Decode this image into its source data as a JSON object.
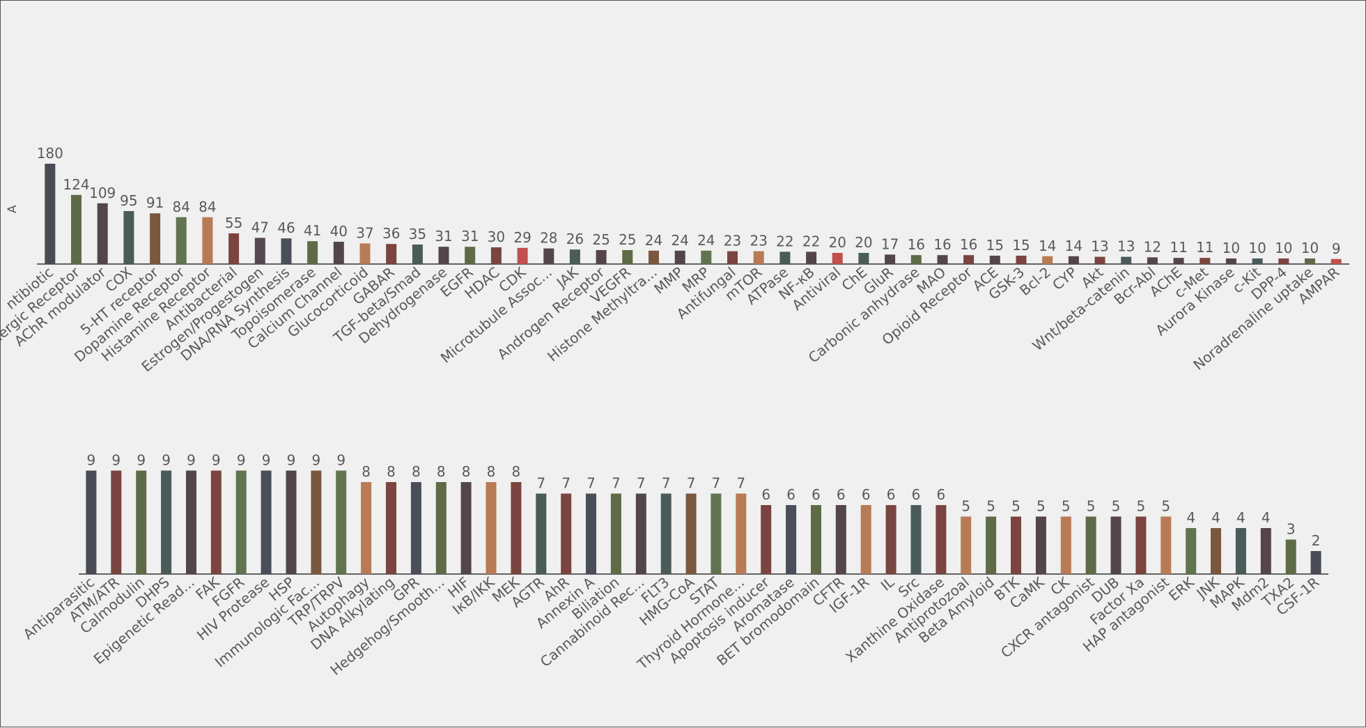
{
  "chart_data": [
    {
      "type": "bar",
      "ylabel": "A",
      "categories": [
        "ntibiotic",
        "Adrenergic Receptor",
        "AChR modulator",
        "COX",
        "5-HT receptor",
        "Dopamine Receptor",
        "Histamine Receptor",
        "Antibacterial",
        "Estrogen/Progestogen",
        "DNA/RNA Synthesis",
        "Topoisomerase",
        "Calcium Channel",
        "Glucocorticoid",
        "GABAR",
        "TGF-beta/Smad",
        "Dehydrogenase",
        "EGFR",
        "HDAC",
        "CDK",
        "Microtubule Assoc...",
        "JAK",
        "Androgen Receptor",
        "VEGFR",
        "Histone Methyltra...",
        "MMP",
        "MRP",
        "Antifungal",
        "mTOR",
        "ATPase",
        "NF-κB",
        "Antiviral",
        "ChE",
        "GluR",
        "Carbonic anhydrase",
        "MAO",
        "Opioid Receptor",
        "ACE",
        "GSK-3",
        "Bcl-2",
        "CYP",
        "Akt",
        "Wnt/beta-catenin",
        "Bcr-Abl",
        "AChE",
        "c-Met",
        "Aurora Kinase",
        "c-Kit",
        "DPP-4",
        "Noradrenaline uptake",
        "AMPAR"
      ],
      "values": [
        180,
        124,
        109,
        95,
        91,
        84,
        84,
        55,
        47,
        46,
        41,
        40,
        37,
        36,
        35,
        31,
        31,
        30,
        29,
        28,
        26,
        25,
        25,
        24,
        24,
        24,
        23,
        23,
        22,
        22,
        20,
        20,
        17,
        16,
        16,
        16,
        15,
        15,
        14,
        14,
        13,
        13,
        12,
        11,
        11,
        10,
        10,
        10,
        10,
        9
      ],
      "colors": [
        "#4a4c55",
        "#5f6b46",
        "#54454c",
        "#4a5b5a",
        "#7a5840",
        "#60744f",
        "#b87b55",
        "#7a4440",
        "#564850",
        "#4a4e5a",
        "#5f6b46",
        "#54454c",
        "#b87b55",
        "#7a4440",
        "#4a5b5a",
        "#54454c",
        "#5f6b46",
        "#7a4440",
        "#c0504d",
        "#54454c",
        "#4a5b5a",
        "#54454c",
        "#5f6b46",
        "#7a5840",
        "#54454c",
        "#60744f",
        "#7a4440",
        "#b87b55",
        "#4a5b5a",
        "#54454c",
        "#c0504d",
        "#4a5b5a",
        "#54454c",
        "#5f6b46",
        "#54454c",
        "#7a4440",
        "#54454c",
        "#7a4440",
        "#b87b55",
        "#54454c",
        "#7a4440",
        "#4a5b5a",
        "#54454c",
        "#54454c",
        "#7a4440",
        "#54454c",
        "#4a5b5a",
        "#7a4440",
        "#5f6b46",
        "#c0504d"
      ],
      "ylim": [
        0,
        190
      ]
    },
    {
      "type": "bar",
      "categories": [
        "Antiparasitic",
        "ATM/ATR",
        "Calmodulin",
        "DHPS",
        "Epigenetic Read...",
        "FAK",
        "FGFR",
        "HIV Protease",
        "HSP",
        "Immunologic Fac...",
        "TRP/TRPV",
        "Autophagy",
        "DNA Alkylating",
        "GPR",
        "Hedgehog/Smooth...",
        "HIF",
        "IκB/IKK",
        "MEK",
        "AGTR",
        "AhR",
        "Annexin A",
        "Biliation",
        "Cannabinoid Rec...",
        "FLT3",
        "HMG-CoA",
        "STAT",
        "Thyroid Hormone...",
        "Apoptosis inducer",
        "Aromatase",
        "BET bromodomain",
        "CFTR",
        "IGF-1R",
        "IL",
        "Src",
        "Xanthine Oxidase",
        "Antiprotozoal",
        "Beta Amyloid",
        "BTK",
        "CaMK",
        "CK",
        "CXCR antagonist",
        "DUB",
        "Factor Xa",
        "HAP antagonist",
        "ERK",
        "JNK",
        "MAPK",
        "Mdm2",
        "TXA2",
        "CSF-1R"
      ],
      "values": [
        9,
        9,
        9,
        9,
        9,
        9,
        9,
        9,
        9,
        9,
        9,
        8,
        8,
        8,
        8,
        8,
        8,
        8,
        7,
        7,
        7,
        7,
        7,
        7,
        7,
        7,
        7,
        6,
        6,
        6,
        6,
        6,
        6,
        6,
        6,
        5,
        5,
        5,
        5,
        5,
        5,
        5,
        5,
        5,
        4,
        4,
        4,
        4,
        3,
        2
      ],
      "colors": [
        "#4a4c55",
        "#7a4440",
        "#5f6b46",
        "#4a5b5a",
        "#54454c",
        "#7a4440",
        "#60744f",
        "#4a4e5a",
        "#54454c",
        "#7a5840",
        "#60744f",
        "#b87b55",
        "#7a4440",
        "#4a4e5a",
        "#5f6b46",
        "#54454c",
        "#b87b55",
        "#7a4440",
        "#4a5b5a",
        "#7a4440",
        "#4a4e5a",
        "#5f6b46",
        "#54454c",
        "#4a5b5a",
        "#7a5840",
        "#60744f",
        "#b87b55",
        "#7a4440",
        "#4a4e5a",
        "#5f6b46",
        "#54454c",
        "#b87b55",
        "#7a4440",
        "#4a5b5a",
        "#7a4440",
        "#b87b55",
        "#5f6b46",
        "#7a4440",
        "#54454c",
        "#b87b55",
        "#5f6b46",
        "#54454c",
        "#7a4440",
        "#b87b55",
        "#60744f",
        "#7a5840",
        "#4a5b5a",
        "#54454c",
        "#5f6b46",
        "#4a4c55"
      ],
      "ylim": [
        0,
        10
      ]
    }
  ]
}
